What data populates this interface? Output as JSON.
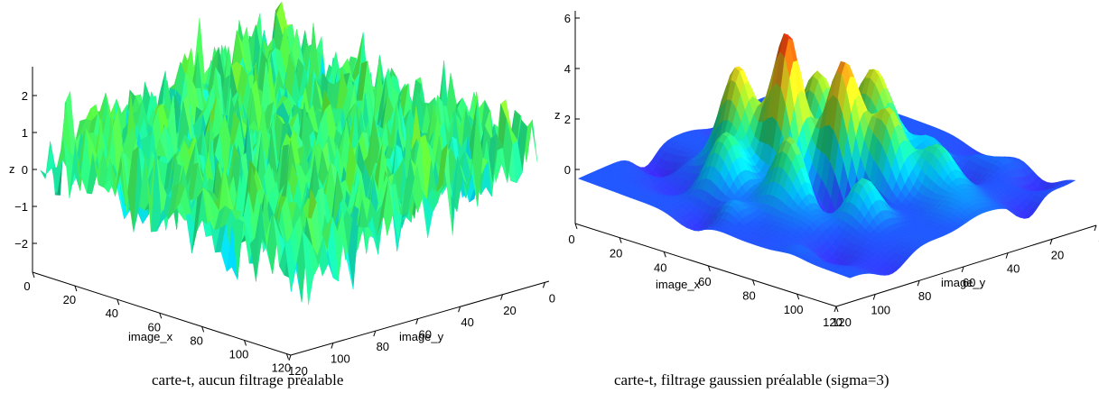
{
  "chart_data": [
    {
      "type": "surface",
      "caption": "carte-t, aucun filtrage préalable",
      "xlabel": "image_x",
      "ylabel": "image_y",
      "zlabel": "z",
      "x_ticks": [
        "0",
        "20",
        "40",
        "60",
        "80",
        "100",
        "120"
      ],
      "y_ticks": [
        "0",
        "20",
        "40",
        "60",
        "80",
        "100",
        "120"
      ],
      "z_ticks": [
        "2",
        "1",
        "0",
        "−1",
        "−2"
      ],
      "z_tick_values": [
        2,
        1,
        0,
        -1,
        -2
      ],
      "xlim": [
        0,
        128
      ],
      "ylim": [
        0,
        128
      ],
      "zlim": [
        -3,
        2.6
      ],
      "description": "unsmoothed random t-map, noise roughly within -3 to 2.6",
      "colormap": [
        "#1e6eff",
        "#00d8ff",
        "#22f08c",
        "#5cf53a",
        "#c8f22a"
      ]
    },
    {
      "type": "surface",
      "caption": "carte-t, filtrage gaussien préalable (sigma=3)",
      "xlabel": "image_x",
      "ylabel": "image_y",
      "zlabel": "z",
      "x_ticks": [
        "0",
        "20",
        "40",
        "60",
        "80",
        "100",
        "120"
      ],
      "y_ticks": [
        "0",
        "20",
        "40",
        "60",
        "80",
        "100",
        "120"
      ],
      "z_ticks": [
        "6",
        "4",
        "2",
        "0"
      ],
      "z_tick_values": [
        6,
        4,
        2,
        0
      ],
      "xlim": [
        0,
        128
      ],
      "ylim": [
        0,
        128
      ],
      "zlim": [
        -2,
        6.3
      ],
      "description": "gaussian smoothed t-map with several peaks, maximum about 6.3",
      "colormap": [
        "#c020ff",
        "#3a2cff",
        "#1f5bff",
        "#00c6ff",
        "#1ee88c",
        "#9be02a",
        "#f0e020",
        "#ff7a10",
        "#ff1a10"
      ]
    }
  ]
}
